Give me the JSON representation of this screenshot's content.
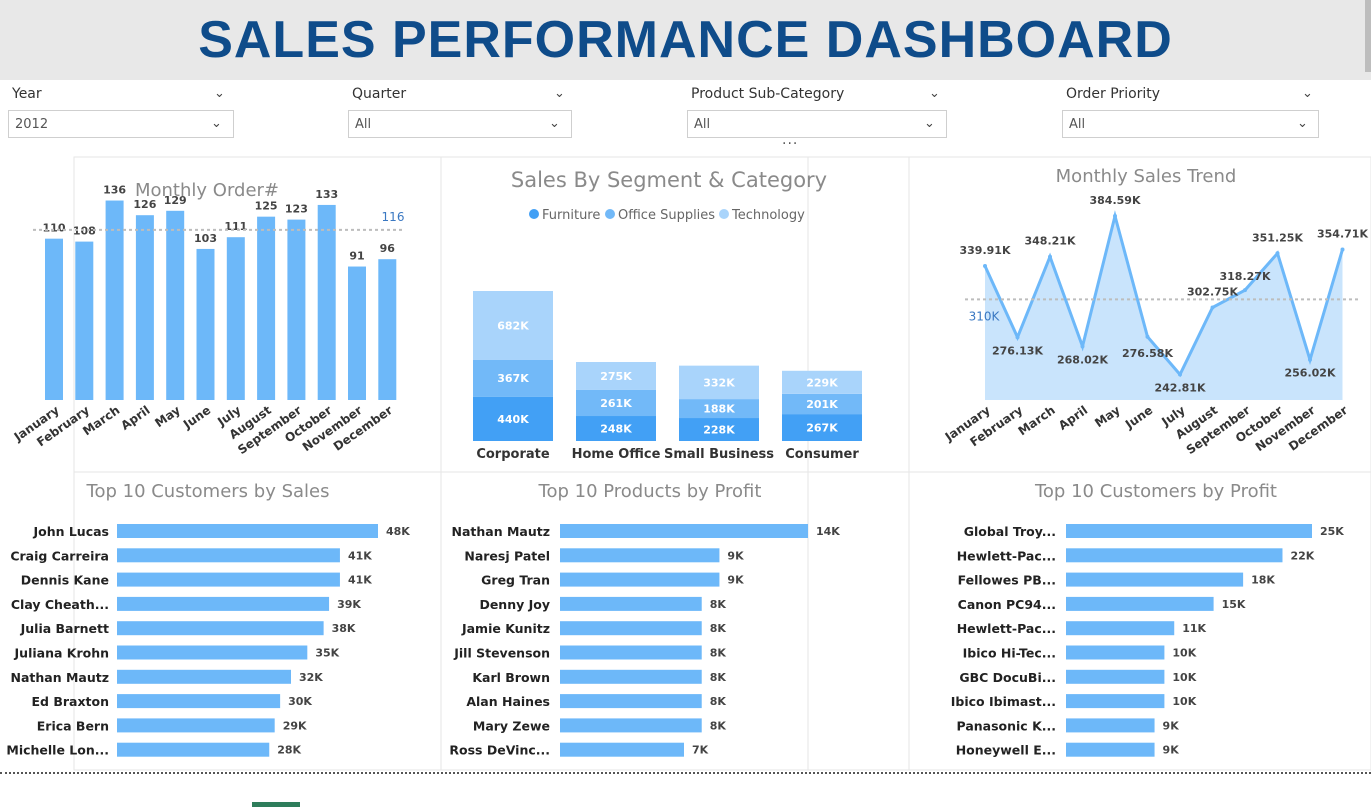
{
  "header": {
    "title": "SALES PERFORMANCE DASHBOARD"
  },
  "filters": [
    {
      "label": "Year",
      "value": "2012"
    },
    {
      "label": "Quarter",
      "value": "All"
    },
    {
      "label": "Product Sub-Category",
      "value": "All"
    },
    {
      "label": "Order Priority",
      "value": "All"
    }
  ],
  "more_options": "...",
  "colors": {
    "bar": "#6db8f9",
    "furniture": "#42a0f5",
    "office": "#72b9f8",
    "technology": "#a9d4fb",
    "title": "#0f4c8a"
  },
  "chart_data": [
    {
      "type": "bar",
      "title": "Monthly Order#",
      "categories": [
        "January",
        "February",
        "March",
        "April",
        "May",
        "June",
        "July",
        "August",
        "September",
        "October",
        "November",
        "December"
      ],
      "values": [
        110,
        108,
        136,
        126,
        129,
        103,
        111,
        125,
        123,
        133,
        91,
        96
      ],
      "average": 116,
      "average_label": "116",
      "ylim": [
        0,
        150
      ]
    },
    {
      "type": "bar",
      "title": "Sales By Segment & Category",
      "stacked": true,
      "legend_position": "top",
      "categories": [
        "Corporate",
        "Home Office",
        "Small Business",
        "Consumer"
      ],
      "series": [
        {
          "name": "Furniture",
          "values": [
            440,
            248,
            228,
            267
          ],
          "labels": [
            "440K",
            "248K",
            "228K",
            "267K"
          ]
        },
        {
          "name": "Office Supplies",
          "values": [
            367,
            261,
            188,
            201
          ],
          "labels": [
            "367K",
            "261K",
            "188K",
            "201K"
          ]
        },
        {
          "name": "Technology",
          "values": [
            682,
            275,
            332,
            229
          ],
          "labels": [
            "682K",
            "275K",
            "332K",
            "229K"
          ]
        }
      ]
    },
    {
      "type": "area",
      "title": "Monthly Sales Trend",
      "categories": [
        "January",
        "February",
        "March",
        "April",
        "May",
        "June",
        "July",
        "August",
        "September",
        "October",
        "November",
        "December"
      ],
      "values": [
        339.91,
        276.13,
        348.21,
        268.02,
        384.59,
        276.58,
        242.81,
        302.75,
        318.27,
        351.25,
        256.02,
        354.71
      ],
      "labels": [
        "339.91K",
        "276.13K",
        "348.21K",
        "268.02K",
        "384.59K",
        "276.58K",
        "242.81K",
        "302.75K",
        "318.27K",
        "351.25K",
        "256.02K",
        "354.71K"
      ],
      "average": 310,
      "average_label": "310K",
      "ylim": [
        220,
        390
      ]
    },
    {
      "type": "bar",
      "orientation": "horizontal",
      "title": "Top 10 Customers by Sales",
      "categories": [
        "John Lucas",
        "Craig Carreira",
        "Dennis Kane",
        "Clay Cheath...",
        "Julia Barnett",
        "Juliana Krohn",
        "Nathan Mautz",
        "Ed Braxton",
        "Erica Bern",
        "Michelle Lon..."
      ],
      "values": [
        48,
        41,
        41,
        39,
        38,
        35,
        32,
        30,
        29,
        28
      ],
      "labels": [
        "48K",
        "41K",
        "41K",
        "39K",
        "38K",
        "35K",
        "32K",
        "30K",
        "29K",
        "28K"
      ]
    },
    {
      "type": "bar",
      "orientation": "horizontal",
      "title": "Top 10 Products by Profit",
      "categories": [
        "Nathan Mautz",
        "Naresj Patel",
        "Greg Tran",
        "Denny Joy",
        "Jamie Kunitz",
        "Jill Stevenson",
        "Karl Brown",
        "Alan Haines",
        "Mary Zewe",
        "Ross DeVinc..."
      ],
      "values": [
        14,
        9,
        9,
        8,
        8,
        8,
        8,
        8,
        8,
        7
      ],
      "labels": [
        "14K",
        "9K",
        "9K",
        "8K",
        "8K",
        "8K",
        "8K",
        "8K",
        "8K",
        "7K"
      ]
    },
    {
      "type": "bar",
      "orientation": "horizontal",
      "title": "Top 10 Customers by Profit",
      "categories": [
        "Global Troy...",
        "Hewlett-Pac...",
        "Fellowes PB...",
        "Canon PC94...",
        "Hewlett-Pac...",
        "Ibico Hi-Tec...",
        "GBC DocuBi...",
        "Ibico Ibimast...",
        "Panasonic K...",
        "Honeywell E..."
      ],
      "values": [
        25,
        22,
        18,
        15,
        11,
        10,
        10,
        10,
        9,
        9
      ],
      "labels": [
        "25K",
        "22K",
        "18K",
        "15K",
        "11K",
        "10K",
        "10K",
        "10K",
        "9K",
        "9K"
      ]
    }
  ]
}
